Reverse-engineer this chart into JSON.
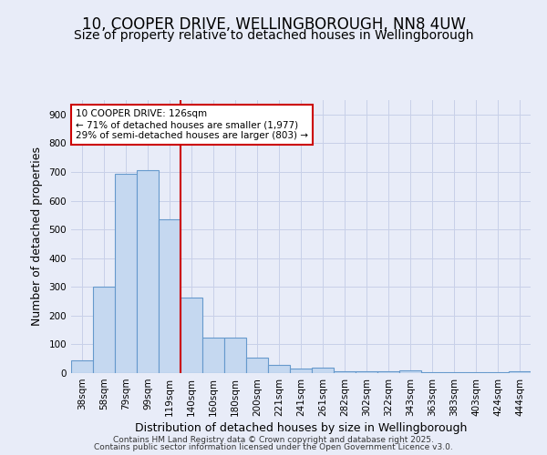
{
  "title_line1": "10, COOPER DRIVE, WELLINGBOROUGH, NN8 4UW",
  "title_line2": "Size of property relative to detached houses in Wellingborough",
  "xlabel": "Distribution of detached houses by size in Wellingborough",
  "ylabel": "Number of detached properties",
  "categories": [
    "38sqm",
    "58sqm",
    "79sqm",
    "99sqm",
    "119sqm",
    "140sqm",
    "160sqm",
    "180sqm",
    "200sqm",
    "221sqm",
    "241sqm",
    "261sqm",
    "282sqm",
    "302sqm",
    "322sqm",
    "343sqm",
    "363sqm",
    "383sqm",
    "403sqm",
    "424sqm",
    "444sqm"
  ],
  "values": [
    45,
    300,
    693,
    705,
    535,
    263,
    122,
    122,
    55,
    28,
    15,
    18,
    5,
    5,
    5,
    8,
    3,
    3,
    3,
    3,
    7
  ],
  "bar_color": "#c5d8f0",
  "bar_edge_color": "#6699cc",
  "bar_width": 1.0,
  "vline_x": 4.5,
  "vline_color": "#cc0000",
  "annotation_text": "10 COOPER DRIVE: 126sqm\n← 71% of detached houses are smaller (1,977)\n29% of semi-detached houses are larger (803) →",
  "annotation_box_facecolor": "#ffffff",
  "annotation_box_edgecolor": "#cc0000",
  "ylim": [
    0,
    950
  ],
  "yticks": [
    0,
    100,
    200,
    300,
    400,
    500,
    600,
    700,
    800,
    900
  ],
  "background_color": "#e8ecf8",
  "grid_color": "#c8d0e8",
  "footer_line1": "Contains HM Land Registry data © Crown copyright and database right 2025.",
  "footer_line2": "Contains public sector information licensed under the Open Government Licence v3.0.",
  "title1_fontsize": 12,
  "title2_fontsize": 10,
  "xlabel_fontsize": 9,
  "ylabel_fontsize": 9,
  "tick_fontsize": 7.5,
  "annotation_fontsize": 7.5,
  "footer_fontsize": 6.5
}
